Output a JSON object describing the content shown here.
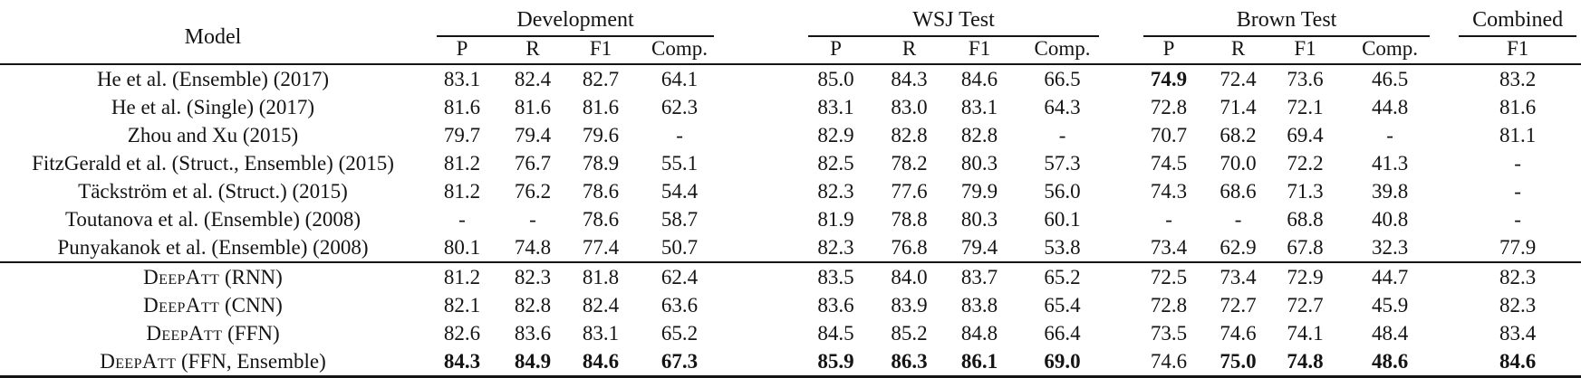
{
  "table": {
    "model_header": "Model",
    "groups": [
      {
        "label": "Development",
        "cols": [
          "P",
          "R",
          "F1",
          "Comp."
        ]
      },
      {
        "label": "WSJ Test",
        "cols": [
          "P",
          "R",
          "F1",
          "Comp."
        ]
      },
      {
        "label": "Brown Test",
        "cols": [
          "P",
          "R",
          "F1",
          "Comp."
        ]
      },
      {
        "label": "Combined",
        "cols": [
          "F1"
        ]
      }
    ],
    "sections": [
      {
        "name": "prior-work",
        "rows": [
          {
            "model_sc": "",
            "model_rest": "He et al. (Ensemble) (2017)",
            "values": [
              "83.1",
              "82.4",
              "82.7",
              "64.1",
              "85.0",
              "84.3",
              "84.6",
              "66.5",
              "74.9",
              "72.4",
              "73.6",
              "46.5",
              "83.2"
            ],
            "bold": [
              8
            ]
          },
          {
            "model_sc": "",
            "model_rest": "He et al. (Single) (2017)",
            "values": [
              "81.6",
              "81.6",
              "81.6",
              "62.3",
              "83.1",
              "83.0",
              "83.1",
              "64.3",
              "72.8",
              "71.4",
              "72.1",
              "44.8",
              "81.6"
            ],
            "bold": []
          },
          {
            "model_sc": "",
            "model_rest": "Zhou and Xu (2015)",
            "values": [
              "79.7",
              "79.4",
              "79.6",
              "-",
              "82.9",
              "82.8",
              "82.8",
              "-",
              "70.7",
              "68.2",
              "69.4",
              "-",
              "81.1"
            ],
            "bold": []
          },
          {
            "model_sc": "",
            "model_rest": "FitzGerald et al. (Struct., Ensemble) (2015)",
            "values": [
              "81.2",
              "76.7",
              "78.9",
              "55.1",
              "82.5",
              "78.2",
              "80.3",
              "57.3",
              "74.5",
              "70.0",
              "72.2",
              "41.3",
              "-"
            ],
            "bold": []
          },
          {
            "model_sc": "",
            "model_rest": "Täckström et al. (Struct.) (2015)",
            "values": [
              "81.2",
              "76.2",
              "78.6",
              "54.4",
              "82.3",
              "77.6",
              "79.9",
              "56.0",
              "74.3",
              "68.6",
              "71.3",
              "39.8",
              "-"
            ],
            "bold": []
          },
          {
            "model_sc": "",
            "model_rest": "Toutanova et al. (Ensemble) (2008)",
            "values": [
              "-",
              "-",
              "78.6",
              "58.7",
              "81.9",
              "78.8",
              "80.3",
              "60.1",
              "-",
              "-",
              "68.8",
              "40.8",
              "-"
            ],
            "bold": []
          },
          {
            "model_sc": "",
            "model_rest": "Punyakanok et al. (Ensemble) (2008)",
            "values": [
              "80.1",
              "74.8",
              "77.4",
              "50.7",
              "82.3",
              "76.8",
              "79.4",
              "53.8",
              "73.4",
              "62.9",
              "67.8",
              "32.3",
              "77.9"
            ],
            "bold": []
          }
        ]
      },
      {
        "name": "deepatt",
        "rows": [
          {
            "model_sc": "DeepAtt",
            "model_rest": " (RNN)",
            "values": [
              "81.2",
              "82.3",
              "81.8",
              "62.4",
              "83.5",
              "84.0",
              "83.7",
              "65.2",
              "72.5",
              "73.4",
              "72.9",
              "44.7",
              "82.3"
            ],
            "bold": []
          },
          {
            "model_sc": "DeepAtt",
            "model_rest": " (CNN)",
            "values": [
              "82.1",
              "82.8",
              "82.4",
              "63.6",
              "83.6",
              "83.9",
              "83.8",
              "65.4",
              "72.8",
              "72.7",
              "72.7",
              "45.9",
              "82.3"
            ],
            "bold": []
          },
          {
            "model_sc": "DeepAtt",
            "model_rest": " (FFN)",
            "values": [
              "82.6",
              "83.6",
              "83.1",
              "65.2",
              "84.5",
              "85.2",
              "84.8",
              "66.4",
              "73.5",
              "74.6",
              "74.1",
              "48.4",
              "83.4"
            ],
            "bold": []
          },
          {
            "model_sc": "DeepAtt",
            "model_rest": " (FFN, Ensemble)",
            "values": [
              "84.3",
              "84.9",
              "84.6",
              "67.3",
              "85.9",
              "86.3",
              "86.1",
              "69.0",
              "74.6",
              "75.0",
              "74.8",
              "48.6",
              "84.6"
            ],
            "bold": [
              0,
              1,
              2,
              3,
              4,
              5,
              6,
              7,
              9,
              10,
              11,
              12
            ]
          }
        ]
      }
    ]
  }
}
